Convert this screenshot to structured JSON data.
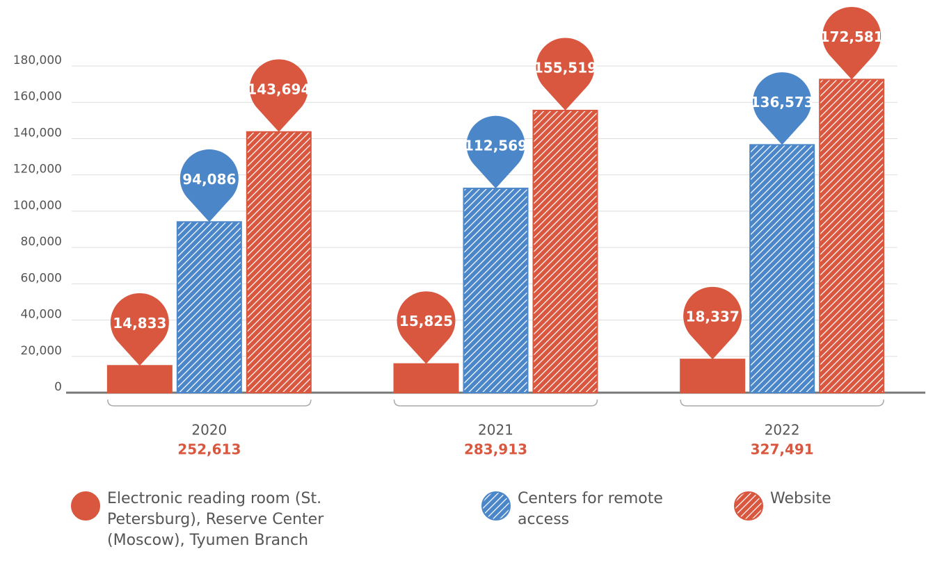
{
  "chart_data": {
    "type": "bar",
    "categories": [
      "2020",
      "2021",
      "2022"
    ],
    "totals": [
      252613,
      283913,
      327491
    ],
    "total_labels": [
      "252,613",
      "283,913",
      "327,491"
    ],
    "series": [
      {
        "name": "Electronic reading room (St. Petersburg), Reserve Center (Moscow), Tyumen Branch",
        "color": "#d9573f",
        "pattern": "solid",
        "values": [
          14833,
          15825,
          18337
        ],
        "value_labels": [
          "14,833",
          "15,825",
          "18,337"
        ]
      },
      {
        "name": "Centers for remote access",
        "color": "#4a86c8",
        "pattern": "hatch",
        "values": [
          94086,
          112569,
          136573
        ],
        "value_labels": [
          "94,086",
          "112,569",
          "136,573"
        ]
      },
      {
        "name": "Website",
        "color": "#d9573f",
        "pattern": "hatch",
        "values": [
          143694,
          155519,
          172581
        ],
        "value_labels": [
          "143,694",
          "155,519",
          "172,581"
        ]
      }
    ],
    "ylim": [
      0,
      180000
    ],
    "yticks": [
      0,
      {
        "value": 20000,
        "label": "20,000"
      },
      {
        "value": 40000,
        "label": "40,000"
      },
      {
        "value": 60000,
        "label": "60,000"
      },
      {
        "value": 80000,
        "label": "80,000"
      },
      {
        "value": 100000,
        "label": "100,000"
      },
      {
        "value": 120000,
        "label": "120,000"
      },
      {
        "value": 140000,
        "label": "140,000"
      },
      {
        "value": 160000,
        "label": "160,000"
      },
      {
        "value": 180000,
        "label": "180,000"
      }
    ],
    "grid": true
  }
}
